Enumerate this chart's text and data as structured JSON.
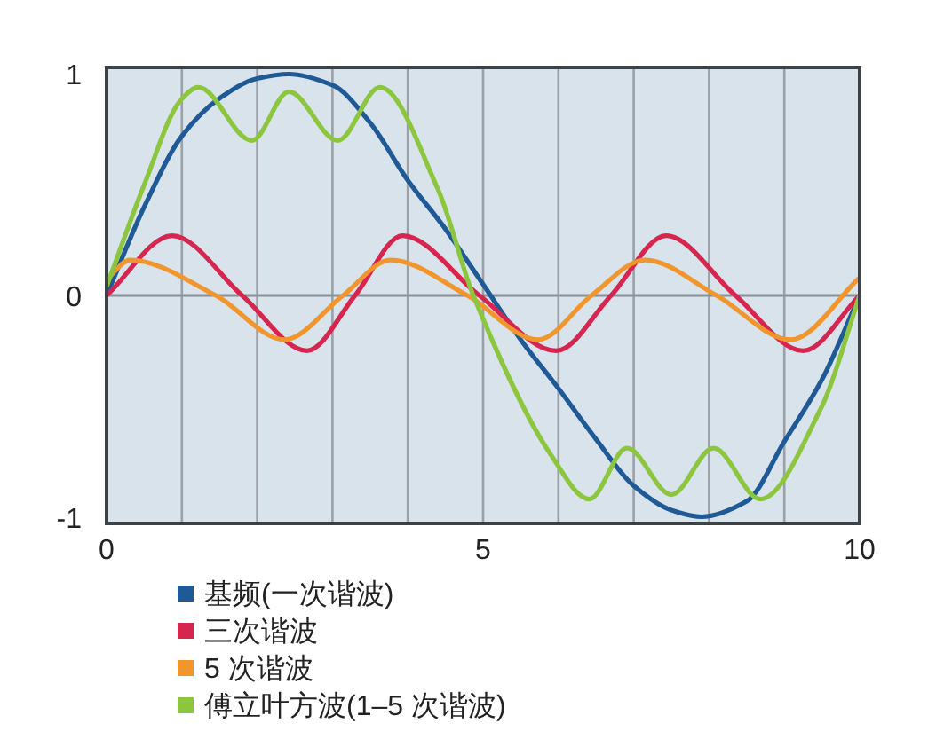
{
  "chart_data": {
    "type": "line",
    "xlim": [
      0,
      10
    ],
    "ylim": [
      -1.03,
      1.03
    ],
    "xticks": [
      0,
      {
        "value": 1,
        "label": null
      },
      {
        "value": 2,
        "label": null
      },
      {
        "value": 3,
        "label": null
      },
      {
        "value": 4,
        "label": null
      },
      5,
      {
        "value": 6,
        "label": null
      },
      {
        "value": 7,
        "label": null
      },
      {
        "value": 8,
        "label": null
      },
      {
        "value": 9,
        "label": null
      },
      10
    ],
    "yticks": [
      -1,
      0,
      1
    ],
    "grid": "x",
    "legend": "bottom",
    "marker": "none",
    "line_style": "solid",
    "ref_lines": [
      {
        "axis": "y",
        "value": 0,
        "color": "#8a9097"
      }
    ],
    "series": [
      {
        "name": "基频(一次谐波)",
        "color": "#1f5a96",
        "x": [
          0,
          0.5,
          1,
          1.5,
          2,
          2.42,
          3,
          3.5,
          4,
          4.5,
          5,
          5.5,
          6,
          6.5,
          7,
          7.5,
          7.9,
          8.5,
          9,
          9.5,
          10
        ],
        "values": [
          0,
          0.4,
          0.72,
          0.89,
          0.98,
          1,
          0.95,
          0.78,
          0.52,
          0.3,
          0.05,
          -0.2,
          -0.42,
          -0.65,
          -0.86,
          -0.97,
          -1,
          -0.93,
          -0.66,
          -0.38,
          0
        ]
      },
      {
        "name": "三次谐波",
        "color": "#d6254f",
        "x": [
          0,
          0.87,
          1.8,
          2.66,
          3.3,
          3.93,
          4.95,
          5.97,
          6.7,
          7.43,
          8.35,
          9.25,
          10
        ],
        "values": [
          0,
          0.27,
          0,
          -0.25,
          0,
          0.27,
          0,
          -0.25,
          0,
          0.27,
          0,
          -0.25,
          0
        ]
      },
      {
        "name": "5 次谐波",
        "color": "#f0962d",
        "x": [
          0,
          0.31,
          1.45,
          2.36,
          3.14,
          3.77,
          4.79,
          5.73,
          6.44,
          7.15,
          8.1,
          9.08,
          10
        ],
        "values": [
          0.07,
          0.16,
          0,
          -0.2,
          0,
          0.16,
          0,
          -0.2,
          0,
          0.16,
          0,
          -0.2,
          0.08
        ]
      },
      {
        "name": "傅立叶方波(1–5 次谐波)",
        "color": "#8cc63f",
        "x": [
          0,
          0.5,
          0.98,
          1.22,
          1.93,
          2.42,
          3.07,
          3.63,
          4.4,
          4.87,
          5.9,
          6.41,
          6.91,
          7.5,
          8.06,
          8.68,
          9.5,
          10
        ],
        "values": [
          0.04,
          0.5,
          0.88,
          0.94,
          0.7,
          0.92,
          0.7,
          0.94,
          0.48,
          0,
          -0.72,
          -0.92,
          -0.69,
          -0.9,
          -0.69,
          -0.92,
          -0.5,
          0
        ]
      }
    ]
  }
}
